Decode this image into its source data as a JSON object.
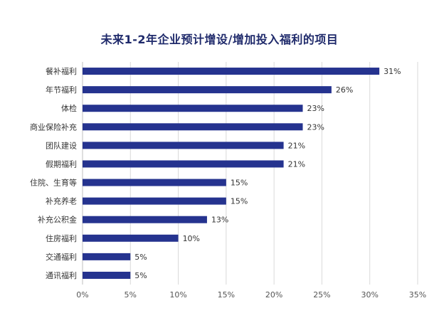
{
  "chart_data": {
    "type": "bar",
    "orientation": "horizontal",
    "title": "未来1-2年企业预计增设/增加投入福利的项目",
    "categories": [
      "餐补福利",
      "年节福利",
      "体检",
      "商业保险补充",
      "团队建设",
      "假期福利",
      "住院、生育等",
      "补充养老",
      "补充公积金",
      "住房福利",
      "交通福利",
      "通讯福利"
    ],
    "values": [
      31,
      26,
      23,
      23,
      21,
      21,
      15,
      15,
      13,
      10,
      5,
      5
    ],
    "value_labels": [
      "31%",
      "26%",
      "23%",
      "23%",
      "21%",
      "21%",
      "15%",
      "15%",
      "13%",
      "10%",
      "5%",
      "5%"
    ],
    "xlim": [
      0,
      35
    ],
    "x_ticks": [
      0,
      5,
      10,
      15,
      20,
      25,
      30,
      35
    ],
    "x_tick_labels": [
      "0%",
      "5%",
      "10%",
      "15%",
      "20%",
      "25%",
      "30%",
      "35%"
    ],
    "bar_color": "#25338f",
    "grid": true,
    "xlabel": "",
    "ylabel": ""
  }
}
